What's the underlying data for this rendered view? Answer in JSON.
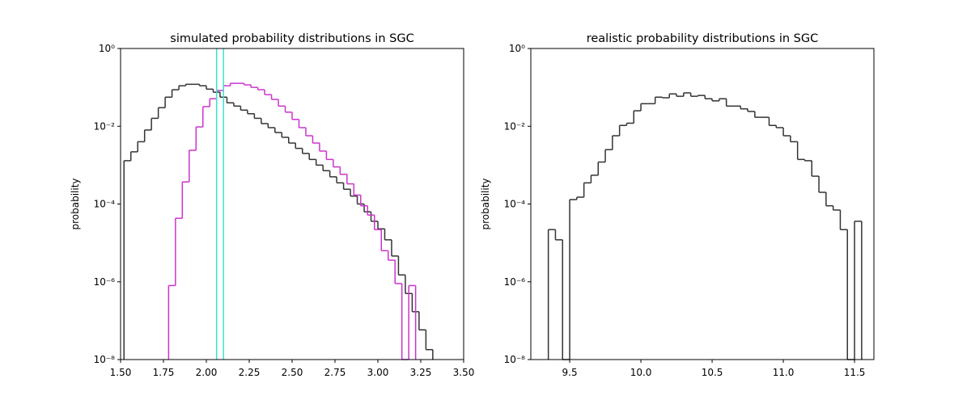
{
  "chart_data": [
    {
      "type": "histogram",
      "title": "simulated probability distributions in SGC",
      "y_label": "probability",
      "log_y": true,
      "xlim": [
        1.5,
        3.5
      ],
      "ylim": [
        1e-08,
        1
      ],
      "xticks": [
        {
          "value": 1.5,
          "label": "1.50"
        },
        1.75,
        {
          "value": 2.0,
          "label": "2.00"
        },
        2.25,
        {
          "value": 2.5,
          "label": "2.50"
        },
        2.75,
        {
          "value": 3.0,
          "label": "3.00"
        },
        3.25,
        {
          "value": 3.5,
          "label": "3.50"
        }
      ],
      "yticks": [
        {
          "value": 1,
          "label": "10⁰"
        },
        {
          "value": 0.01,
          "label": "10⁻²"
        },
        {
          "value": 0.0001,
          "label": "10⁻⁴"
        },
        {
          "value": 1e-06,
          "label": "10⁻⁶"
        },
        {
          "value": 1e-08,
          "label": "10⁻⁸"
        }
      ],
      "series": [
        {
          "color": "#333333",
          "bins": [
            1.52,
            1.56,
            1.6,
            1.64,
            1.68,
            1.72,
            1.76,
            1.8,
            1.84,
            1.88,
            1.92,
            1.96,
            2.0,
            2.04,
            2.08,
            2.12,
            2.16,
            2.2,
            2.24,
            2.28,
            2.32,
            2.36,
            2.4,
            2.44,
            2.48,
            2.52,
            2.56,
            2.6,
            2.64,
            2.68,
            2.72,
            2.76,
            2.8,
            2.84,
            2.88,
            2.92,
            2.96,
            3.0,
            3.04,
            3.08,
            3.12,
            3.16,
            3.2,
            3.24,
            3.28,
            3.32
          ],
          "values": [
            0.0013,
            0.0022,
            0.004,
            0.008,
            0.016,
            0.03,
            0.056,
            0.087,
            0.11,
            0.12,
            0.12,
            0.11,
            0.09,
            0.075,
            0.056,
            0.04,
            0.033,
            0.026,
            0.021,
            0.016,
            0.0117,
            0.0092,
            0.0069,
            0.0052,
            0.0037,
            0.0027,
            0.002,
            0.0014,
            0.001,
            0.00072,
            0.0005,
            0.00035,
            0.00024,
            0.00016,
            0.0001,
            6.3e-05,
            3.6e-05,
            2.3e-05,
            1.2e-05,
            4.6e-06,
            1.5e-06,
            5e-07,
            1.7e-07,
            5.8e-08,
            1.8e-08
          ]
        },
        {
          "color": "#cc33cc",
          "bins": [
            1.78,
            1.82,
            1.86,
            1.9,
            1.94,
            1.98,
            2.02,
            2.06,
            2.1,
            2.14,
            2.18,
            2.22,
            2.26,
            2.3,
            2.34,
            2.38,
            2.42,
            2.46,
            2.5,
            2.54,
            2.58,
            2.62,
            2.66,
            2.7,
            2.74,
            2.78,
            2.82,
            2.86,
            2.9,
            2.94,
            2.98,
            3.02,
            3.06,
            3.1,
            3.14,
            3.18,
            3.22
          ],
          "values": [
            8e-07,
            4.3e-05,
            0.00037,
            0.0024,
            0.0096,
            0.032,
            0.051,
            0.083,
            0.11,
            0.127,
            0.127,
            0.116,
            0.1,
            0.087,
            0.065,
            0.049,
            0.033,
            0.023,
            0.015,
            0.0092,
            0.0057,
            0.0037,
            0.0023,
            0.0014,
            0.0009,
            0.00058,
            0.00033,
            0.00017,
            9e-05,
            5.2e-05,
            2.2e-05,
            6.3e-06,
            3.6e-06,
            9e-07,
            0,
            8e-07
          ]
        }
      ],
      "vlines": [
        2.06,
        2.1
      ],
      "vline_color": "#40e0d0"
    },
    {
      "type": "histogram",
      "title": "realistic probability distributions in SGC",
      "y_label": "probability",
      "log_y": true,
      "xlim": [
        9.227,
        11.636
      ],
      "ylim": [
        1e-08,
        1
      ],
      "xticks": [
        9.5,
        {
          "value": 10.0,
          "label": "10.0"
        },
        10.5,
        {
          "value": 11.0,
          "label": "11.0"
        },
        11.5
      ],
      "yticks": [
        {
          "value": 1,
          "label": "10⁰"
        },
        {
          "value": 0.01,
          "label": "10⁻²"
        },
        {
          "value": 0.0001,
          "label": "10⁻⁴"
        },
        {
          "value": 1e-06,
          "label": "10⁻⁶"
        },
        {
          "value": 1e-08,
          "label": "10⁻⁸"
        }
      ],
      "series": [
        {
          "color": "#333333",
          "bins": [
            9.35,
            9.4,
            9.45,
            9.5,
            9.55,
            9.6,
            9.65,
            9.7,
            9.75,
            9.8,
            9.85,
            9.9,
            9.95,
            10.0,
            10.05,
            10.1,
            10.15,
            10.2,
            10.25,
            10.3,
            10.35,
            10.4,
            10.45,
            10.5,
            10.55,
            10.6,
            10.65,
            10.7,
            10.75,
            10.8,
            10.85,
            10.9,
            10.95,
            11.0,
            11.05,
            11.1,
            11.15,
            11.2,
            11.25,
            11.3,
            11.35,
            11.4,
            11.45,
            11.5,
            11.55
          ],
          "values": [
            2.2e-05,
            1.2e-05,
            0,
            0.00013,
            0.00015,
            0.00035,
            0.00055,
            0.0012,
            0.0025,
            0.0057,
            0.0105,
            0.012,
            0.025,
            0.038,
            0.038,
            0.056,
            0.054,
            0.068,
            0.059,
            0.072,
            0.059,
            0.062,
            0.051,
            0.045,
            0.051,
            0.033,
            0.033,
            0.028,
            0.024,
            0.017,
            0.017,
            0.0105,
            0.0092,
            0.0057,
            0.004,
            0.0014,
            0.0013,
            0.00052,
            0.0002,
            9e-05,
            7e-05,
            2.2e-05,
            0,
            3.6e-05
          ]
        }
      ]
    }
  ]
}
